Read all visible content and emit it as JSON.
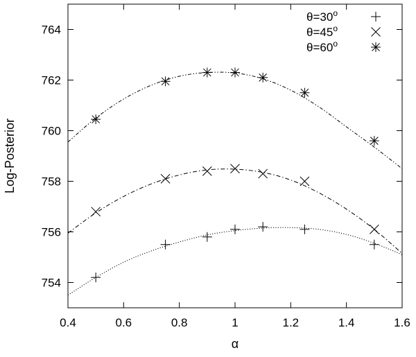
{
  "chart_data": {
    "type": "scatter",
    "title": "",
    "xlabel": "α",
    "ylabel": "Log-Posterior",
    "xlim": [
      0.4,
      1.6
    ],
    "ylim": [
      753,
      765
    ],
    "x_ticks": [
      0.4,
      0.6,
      0.8,
      1,
      1.2,
      1.4,
      1.6
    ],
    "x_tick_labels": [
      "0.4",
      "0.6",
      "0.8",
      "1",
      "1.2",
      "1.4",
      "1.6"
    ],
    "y_ticks": [
      754,
      756,
      758,
      760,
      762,
      764
    ],
    "y_tick_labels": [
      "754",
      "756",
      "758",
      "760",
      "762",
      "764"
    ],
    "grid": false,
    "legend_position": "top-right",
    "series": [
      {
        "name": "θ=30°",
        "legend_base": "θ=30",
        "legend_sup": "o",
        "marker": "plus",
        "line_style": "dotted",
        "x": [
          0.5,
          0.75,
          0.9,
          1.0,
          1.1,
          1.25,
          1.5
        ],
        "y": [
          754.2,
          755.5,
          755.8,
          756.1,
          756.2,
          756.1,
          755.5
        ],
        "fit_x": [
          0.4,
          0.5,
          0.6,
          0.7,
          0.8,
          0.9,
          1.0,
          1.1,
          1.2,
          1.3,
          1.4,
          1.5,
          1.6
        ],
        "fit_y": [
          753.5,
          754.2,
          754.8,
          755.25,
          755.6,
          755.88,
          756.05,
          756.15,
          756.17,
          756.1,
          755.9,
          755.55,
          755.1
        ]
      },
      {
        "name": "θ=45°",
        "legend_base": "θ=45",
        "legend_sup": "o",
        "marker": "cross",
        "line_style": "dashdot",
        "x": [
          0.5,
          0.75,
          0.9,
          1.0,
          1.1,
          1.25,
          1.5
        ],
        "y": [
          756.8,
          758.1,
          758.4,
          758.5,
          758.3,
          758.0,
          756.1
        ],
        "fit_x": [
          0.4,
          0.5,
          0.6,
          0.7,
          0.8,
          0.9,
          1.0,
          1.1,
          1.2,
          1.3,
          1.4,
          1.5,
          1.6
        ],
        "fit_y": [
          755.95,
          756.75,
          757.4,
          757.9,
          758.25,
          758.45,
          758.48,
          758.35,
          758.05,
          757.55,
          756.9,
          756.1,
          755.15
        ]
      },
      {
        "name": "θ=60°",
        "legend_base": "θ=60",
        "legend_sup": "o",
        "marker": "star",
        "line_style": "dashdotdot",
        "x": [
          0.5,
          0.75,
          0.9,
          1.0,
          1.1,
          1.25,
          1.5
        ],
        "y": [
          760.45,
          761.95,
          762.3,
          762.3,
          762.1,
          761.5,
          759.6
        ],
        "fit_x": [
          0.4,
          0.5,
          0.6,
          0.7,
          0.8,
          0.9,
          1.0,
          1.1,
          1.2,
          1.3,
          1.4,
          1.5,
          1.6
        ],
        "fit_y": [
          759.55,
          760.5,
          761.25,
          761.8,
          762.15,
          762.3,
          762.28,
          762.05,
          761.6,
          760.95,
          760.15,
          759.35,
          758.5
        ]
      }
    ]
  }
}
